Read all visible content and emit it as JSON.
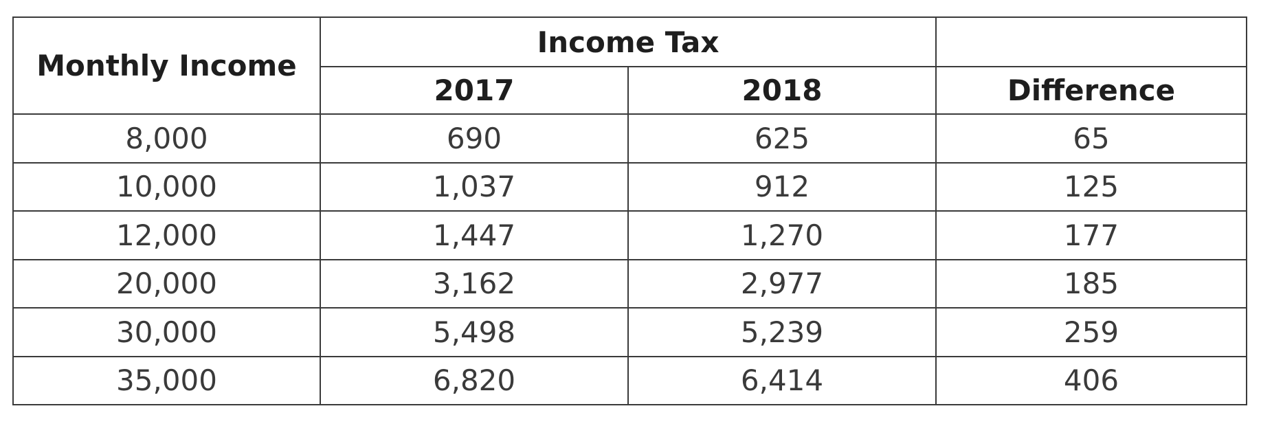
{
  "table": {
    "header": {
      "monthly_income": "Monthly Income",
      "group": "Income Tax",
      "col_2017": "2017",
      "col_2018": "2018",
      "col_difference": "Difference"
    },
    "rows": [
      {
        "income": "8,000",
        "tax_2017": "690",
        "tax_2018": "625",
        "difference": "65"
      },
      {
        "income": "10,000",
        "tax_2017": "1,037",
        "tax_2018": "912",
        "difference": "125"
      },
      {
        "income": "12,000",
        "tax_2017": "1,447",
        "tax_2018": "1,270",
        "difference": "177"
      },
      {
        "income": "20,000",
        "tax_2017": "3,162",
        "tax_2018": "2,977",
        "difference": "185"
      },
      {
        "income": "30,000",
        "tax_2017": "5,498",
        "tax_2018": "5,239",
        "difference": "259"
      },
      {
        "income": "35,000",
        "tax_2017": "6,820",
        "tax_2018": "6,414",
        "difference": "406"
      }
    ]
  }
}
